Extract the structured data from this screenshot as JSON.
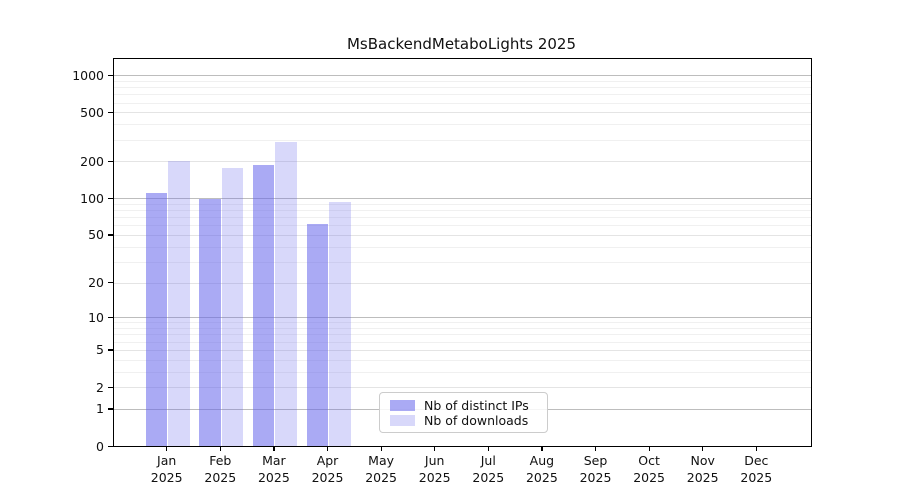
{
  "title": "MsBackendMetaboLights 2025",
  "chart_data": {
    "type": "bar",
    "title": "MsBackendMetaboLights 2025",
    "categories": [
      "Jan",
      "Feb",
      "Mar",
      "Apr",
      "May",
      "Jun",
      "Jul",
      "Aug",
      "Sep",
      "Oct",
      "Nov",
      "Dec"
    ],
    "year_label": "2025",
    "series": [
      {
        "name": "Nb of distinct IPs",
        "color": "rgba(100,100,235,0.55)",
        "values": [
          110,
          99,
          188,
          62,
          0,
          0,
          0,
          0,
          0,
          0,
          0,
          0
        ]
      },
      {
        "name": "Nb of downloads",
        "color": "rgba(100,100,235,0.25)",
        "values": [
          202,
          177,
          286,
          93,
          0,
          0,
          0,
          0,
          0,
          0,
          0,
          0
        ]
      }
    ],
    "yscale": "log1p",
    "ylim": [
      0,
      1350
    ],
    "yticks": [
      0,
      1,
      2,
      5,
      10,
      20,
      50,
      100,
      200,
      500,
      1000
    ],
    "yticks_minor": [
      3,
      4,
      6,
      7,
      8,
      9,
      30,
      40,
      60,
      70,
      80,
      90,
      300,
      400,
      600,
      700,
      800,
      900
    ],
    "grid": true,
    "legend": {
      "position": "lower-center"
    }
  },
  "colors": {
    "grid_decade": "#bdbdbd",
    "grid_labeled": "#e4e4e4",
    "grid_minor": "#f0f0f0",
    "axis": "#000000",
    "text": "#111111"
  }
}
